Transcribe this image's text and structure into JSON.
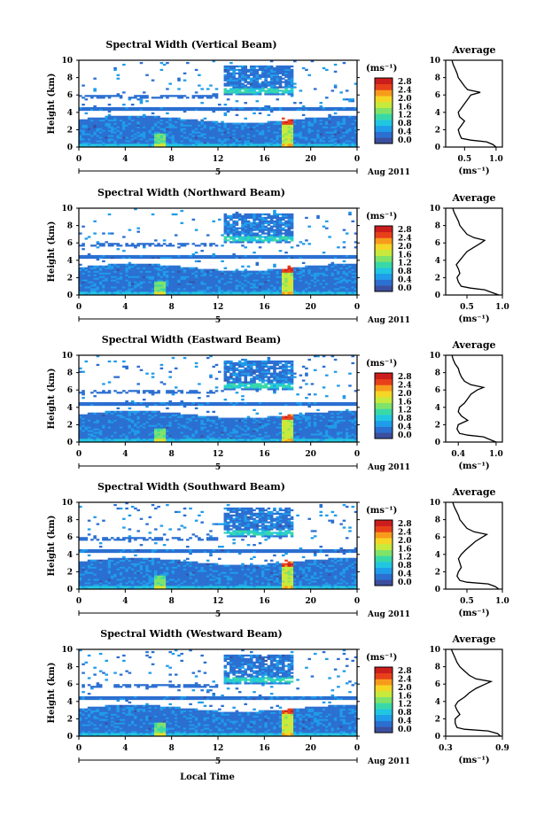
{
  "figure": {
    "bottom_label": "Local Time",
    "date_label": "Aug 2011",
    "day_marker": "5",
    "x_ticks": [
      "0",
      "4",
      "8",
      "12",
      "16",
      "20",
      "0"
    ],
    "y_ticks": [
      "0",
      "2",
      "4",
      "6",
      "8",
      "10"
    ],
    "ylabel": "Height (km)",
    "colorbar": {
      "unit": "(ms⁻¹)",
      "ticks": [
        "2.8",
        "2.4",
        "2.0",
        "1.6",
        "1.2",
        "0.8",
        "0.4",
        "0.0"
      ],
      "colors": [
        "#3b4f9e",
        "#2b6fd1",
        "#1f9cea",
        "#21c6e0",
        "#39d9a7",
        "#7fe36a",
        "#c7ea3c",
        "#f5d626",
        "#f79b1c",
        "#e8401b",
        "#cc1d1d"
      ]
    }
  },
  "panels": [
    {
      "title": "Spectral Width (Vertical Beam)",
      "avg_ticks": [
        "0.5",
        "1.0"
      ],
      "avg_range": [
        0.2,
        1.1
      ]
    },
    {
      "title": "Spectral Width (Northward Beam)",
      "avg_ticks": [
        "0.5",
        "1.0"
      ],
      "avg_range": [
        0.2,
        1.0
      ]
    },
    {
      "title": "Spectral Width (Eastward Beam)",
      "avg_ticks": [
        "0.4",
        "1.0"
      ],
      "avg_range": [
        0.2,
        1.1
      ]
    },
    {
      "title": "Spectral Width (Southward Beam)",
      "avg_ticks": [
        "0.5",
        "1.0"
      ],
      "avg_range": [
        0.2,
        1.0
      ]
    },
    {
      "title": "Spectral Width (Westward Beam)",
      "avg_ticks": [
        "0.3",
        "0.9"
      ],
      "avg_range": [
        0.3,
        0.9
      ]
    }
  ],
  "average_panel": {
    "title": "Average",
    "xlabel": "(ms⁻¹)"
  },
  "chart_data": [
    {
      "type": "heatmap",
      "title": "Spectral Width (Vertical Beam)",
      "xlabel": "Local Time",
      "ylabel": "Height (km)",
      "x_range": [
        0,
        24
      ],
      "ylim": [
        0,
        10
      ],
      "colorbar_range": [
        0.0,
        2.8
      ],
      "colorbar_unit": "(ms⁻¹)",
      "average_profile": {
        "title": "Average",
        "xlabel": "(ms⁻¹)",
        "xlim": [
          0.2,
          1.1
        ],
        "height_km": [
          0,
          0.3,
          0.6,
          0.8,
          1,
          1.5,
          2,
          2.5,
          3,
          3.5,
          4,
          4.5,
          5,
          5.5,
          6,
          6.3,
          6.6,
          7,
          7.5,
          8,
          8.5,
          9,
          9.5,
          10
        ],
        "width": [
          1.0,
          0.95,
          0.85,
          0.6,
          0.45,
          0.42,
          0.4,
          0.45,
          0.5,
          0.42,
          0.4,
          0.45,
          0.5,
          0.55,
          0.6,
          0.75,
          0.55,
          0.5,
          0.45,
          0.4,
          0.38,
          0.35,
          0.32,
          0.3
        ]
      }
    },
    {
      "type": "heatmap",
      "title": "Spectral Width (Northward Beam)",
      "xlabel": "Local Time",
      "ylabel": "Height (km)",
      "x_range": [
        0,
        24
      ],
      "ylim": [
        0,
        10
      ],
      "colorbar_range": [
        0.0,
        2.8
      ],
      "colorbar_unit": "(ms⁻¹)",
      "average_profile": {
        "title": "Average",
        "xlabel": "(ms⁻¹)",
        "xlim": [
          0.2,
          1.0
        ],
        "height_km": [
          0,
          0.3,
          0.6,
          0.8,
          1,
          1.5,
          2,
          2.5,
          3,
          3.5,
          4,
          4.5,
          5,
          5.5,
          6,
          6.3,
          6.6,
          7,
          7.5,
          8,
          8.5,
          9,
          9.5,
          10
        ],
        "width": [
          0.95,
          0.85,
          0.75,
          0.55,
          0.42,
          0.38,
          0.36,
          0.4,
          0.38,
          0.35,
          0.4,
          0.45,
          0.5,
          0.6,
          0.7,
          0.75,
          0.6,
          0.5,
          0.45,
          0.4,
          0.38,
          0.35,
          0.32,
          0.3
        ]
      }
    },
    {
      "type": "heatmap",
      "title": "Spectral Width (Eastward Beam)",
      "xlabel": "Local Time",
      "ylabel": "Height (km)",
      "x_range": [
        0,
        24
      ],
      "ylim": [
        0,
        10
      ],
      "colorbar_range": [
        0.0,
        2.8
      ],
      "colorbar_unit": "(ms⁻¹)",
      "average_profile": {
        "title": "Average",
        "xlabel": "(ms⁻¹)",
        "xlim": [
          0.2,
          1.1
        ],
        "height_km": [
          0,
          0.3,
          0.6,
          0.8,
          1,
          1.5,
          2,
          2.5,
          3,
          3.5,
          4,
          4.5,
          5,
          5.5,
          6,
          6.3,
          6.6,
          7,
          7.5,
          8,
          8.5,
          9,
          9.5,
          10
        ],
        "width": [
          1.0,
          0.9,
          0.8,
          0.55,
          0.42,
          0.38,
          0.4,
          0.55,
          0.45,
          0.4,
          0.42,
          0.5,
          0.55,
          0.6,
          0.7,
          0.8,
          0.6,
          0.5,
          0.45,
          0.42,
          0.4,
          0.35,
          0.32,
          0.3
        ]
      }
    },
    {
      "type": "heatmap",
      "title": "Spectral Width (Southward Beam)",
      "xlabel": "Local Time",
      "ylabel": "Height (km)",
      "x_range": [
        0,
        24
      ],
      "ylim": [
        0,
        10
      ],
      "colorbar_range": [
        0.0,
        2.8
      ],
      "colorbar_unit": "(ms⁻¹)",
      "average_profile": {
        "title": "Average",
        "xlabel": "(ms⁻¹)",
        "xlim": [
          0.2,
          1.0
        ],
        "height_km": [
          0,
          0.3,
          0.6,
          0.8,
          1,
          1.5,
          2,
          2.5,
          3,
          3.5,
          4,
          4.5,
          5,
          5.5,
          6,
          6.3,
          6.6,
          7,
          7.5,
          8,
          8.5,
          9,
          9.5,
          10
        ],
        "width": [
          0.95,
          0.9,
          0.8,
          0.5,
          0.4,
          0.36,
          0.38,
          0.42,
          0.4,
          0.38,
          0.42,
          0.48,
          0.55,
          0.62,
          0.72,
          0.78,
          0.6,
          0.5,
          0.45,
          0.4,
          0.38,
          0.35,
          0.32,
          0.3
        ]
      }
    },
    {
      "type": "heatmap",
      "title": "Spectral Width (Westward Beam)",
      "xlabel": "Local Time",
      "ylabel": "Height (km)",
      "x_range": [
        0,
        24
      ],
      "ylim": [
        0,
        10
      ],
      "colorbar_range": [
        0.0,
        2.8
      ],
      "colorbar_unit": "(ms⁻¹)",
      "average_profile": {
        "title": "Average",
        "xlabel": "(ms⁻¹)",
        "xlim": [
          0.3,
          0.9
        ],
        "height_km": [
          0,
          0.3,
          0.6,
          0.8,
          1,
          1.5,
          2,
          2.5,
          3,
          3.5,
          4,
          4.5,
          5,
          5.5,
          6,
          6.3,
          6.6,
          7,
          7.5,
          8,
          8.5,
          9,
          9.5,
          10
        ],
        "width": [
          0.88,
          0.85,
          0.75,
          0.5,
          0.42,
          0.4,
          0.4,
          0.45,
          0.42,
          0.4,
          0.43,
          0.5,
          0.55,
          0.62,
          0.72,
          0.78,
          0.62,
          0.55,
          0.5,
          0.45,
          0.42,
          0.4,
          0.38,
          0.36
        ]
      }
    }
  ]
}
